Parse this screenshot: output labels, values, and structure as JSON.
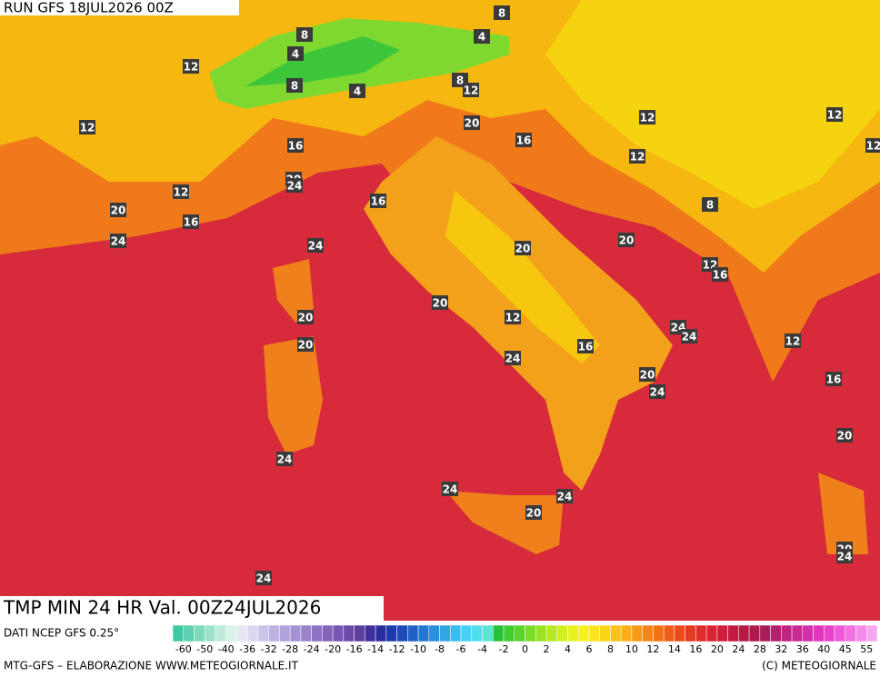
{
  "header": {
    "run": "RUN GFS 18JUL2026 00Z"
  },
  "footer": {
    "title": "TMP MIN 24 HR Val. 00Z24JUL2026",
    "source": "DATI NCEP GFS 0.25°",
    "credit_left": "MTG-GFS – ELABORAZIONE WWW.METEOGIORNALE.IT",
    "credit_right": "(C) METEOGIORNALE"
  },
  "map_labels": [
    8,
    8,
    4,
    4,
    12,
    8,
    4,
    8,
    12,
    12,
    12,
    12,
    20,
    16,
    16,
    12,
    12,
    20,
    24,
    12,
    16,
    8,
    20,
    16,
    20,
    24,
    24,
    20,
    12,
    16,
    20,
    20,
    12,
    24,
    24,
    20,
    12,
    16,
    24,
    16,
    20,
    24,
    20,
    24,
    24,
    24,
    20,
    20,
    24,
    24
  ],
  "colorbar": {
    "labels": [
      -60,
      -50,
      -40,
      -36,
      -32,
      -28,
      -24,
      -20,
      -16,
      -14,
      -12,
      -10,
      -8,
      -6,
      -4,
      -2,
      0,
      2,
      4,
      6,
      8,
      10,
      12,
      14,
      16,
      20,
      24,
      28,
      32,
      36,
      40,
      45,
      55
    ],
    "colors": [
      "#3ec9a5",
      "#5ed0af",
      "#7fd9bd",
      "#9fe2cc",
      "#bdebdc",
      "#d6f4ea",
      "#e6e6f5",
      "#d9d8f0",
      "#cac6ea",
      "#bdb3e3",
      "#b1a2dc",
      "#a592d4",
      "#9a82cc",
      "#8f72c4",
      "#8364bb",
      "#7757b2",
      "#6b4aa8",
      "#5f3f9e",
      "#3f2f9a",
      "#2a2d9e",
      "#1f3aaa",
      "#1d4cb8",
      "#1f60c6",
      "#2377d2",
      "#2a8fde",
      "#33a6e8",
      "#3bbcf0",
      "#45d0f5",
      "#4fe0ee",
      "#55e8d2",
      "#27c23a",
      "#40cc33",
      "#5cd42d",
      "#7bdc28",
      "#99e324",
      "#b7ea22",
      "#d2ef20",
      "#e8f21f",
      "#f6f020",
      "#fbe41e",
      "#fcd41c",
      "#fcc21a",
      "#fbae18",
      "#f89a17",
      "#f58616",
      "#f27215",
      "#ee5e18",
      "#ea4b1c",
      "#e53a22",
      "#df2d2a",
      "#d82433",
      "#cf1f3a",
      "#c41c40",
      "#b81a45",
      "#ad1a4b",
      "#a81d5a",
      "#b2206e",
      "#be2482",
      "#ca2996",
      "#d52eaa",
      "#df36bd",
      "#e842cd",
      "#ef58d9",
      "#f272e2",
      "#f38ce9",
      "#f5a8ef"
    ]
  }
}
